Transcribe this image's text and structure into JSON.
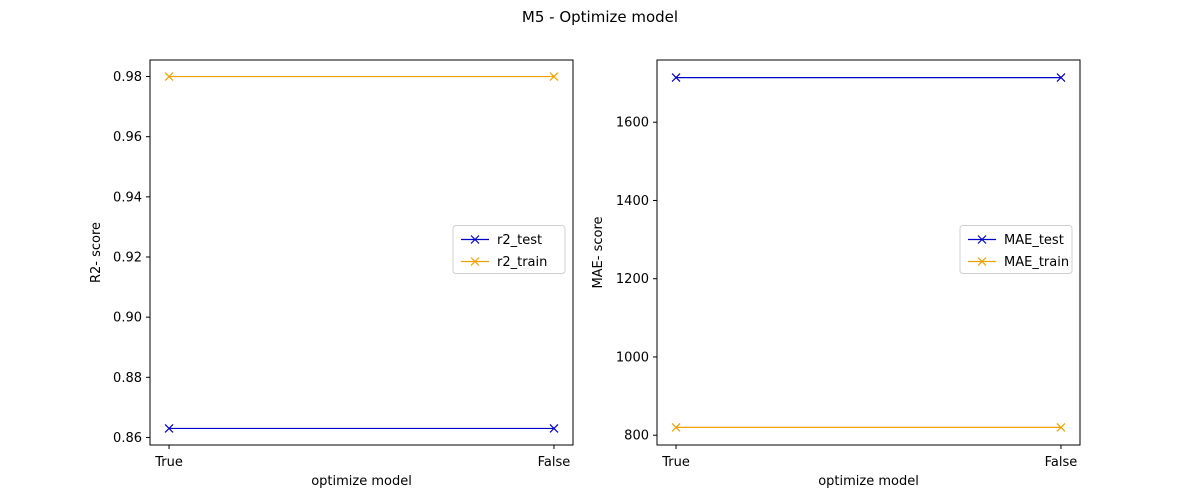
{
  "figure": {
    "suptitle": "M5 - Optimize model"
  },
  "chart_data": [
    {
      "type": "line",
      "xlabel": "optimize model",
      "ylabel": "R2- score",
      "categories": [
        "True",
        "False"
      ],
      "ylim": [
        0.8575,
        0.9855
      ],
      "yticks": [
        0.86,
        0.88,
        0.9,
        0.92,
        0.94,
        0.96,
        0.98
      ],
      "ytick_labels": [
        "0.86",
        "0.88",
        "0.90",
        "0.92",
        "0.94",
        "0.96",
        "0.98"
      ],
      "grid": false,
      "legend_position": "center-right",
      "series": [
        {
          "name": "r2_test",
          "values": [
            0.863,
            0.863
          ],
          "color": "#0000cc",
          "marker": "x"
        },
        {
          "name": "r2_train",
          "values": [
            0.98,
            0.98
          ],
          "color": "#f0a000",
          "marker": "x"
        }
      ]
    },
    {
      "type": "line",
      "xlabel": "optimize model",
      "ylabel": "MAE- score",
      "categories": [
        "True",
        "False"
      ],
      "ylim": [
        775,
        1759
      ],
      "yticks": [
        800,
        1000,
        1200,
        1400,
        1600
      ],
      "ytick_labels": [
        "800",
        "1000",
        "1200",
        "1400",
        "1600"
      ],
      "grid": false,
      "legend_position": "center-right",
      "series": [
        {
          "name": "MAE_test",
          "values": [
            1714,
            1714
          ],
          "color": "#0000cc",
          "marker": "x"
        },
        {
          "name": "MAE_train",
          "values": [
            820,
            820
          ],
          "color": "#f0a000",
          "marker": "x"
        }
      ]
    }
  ]
}
